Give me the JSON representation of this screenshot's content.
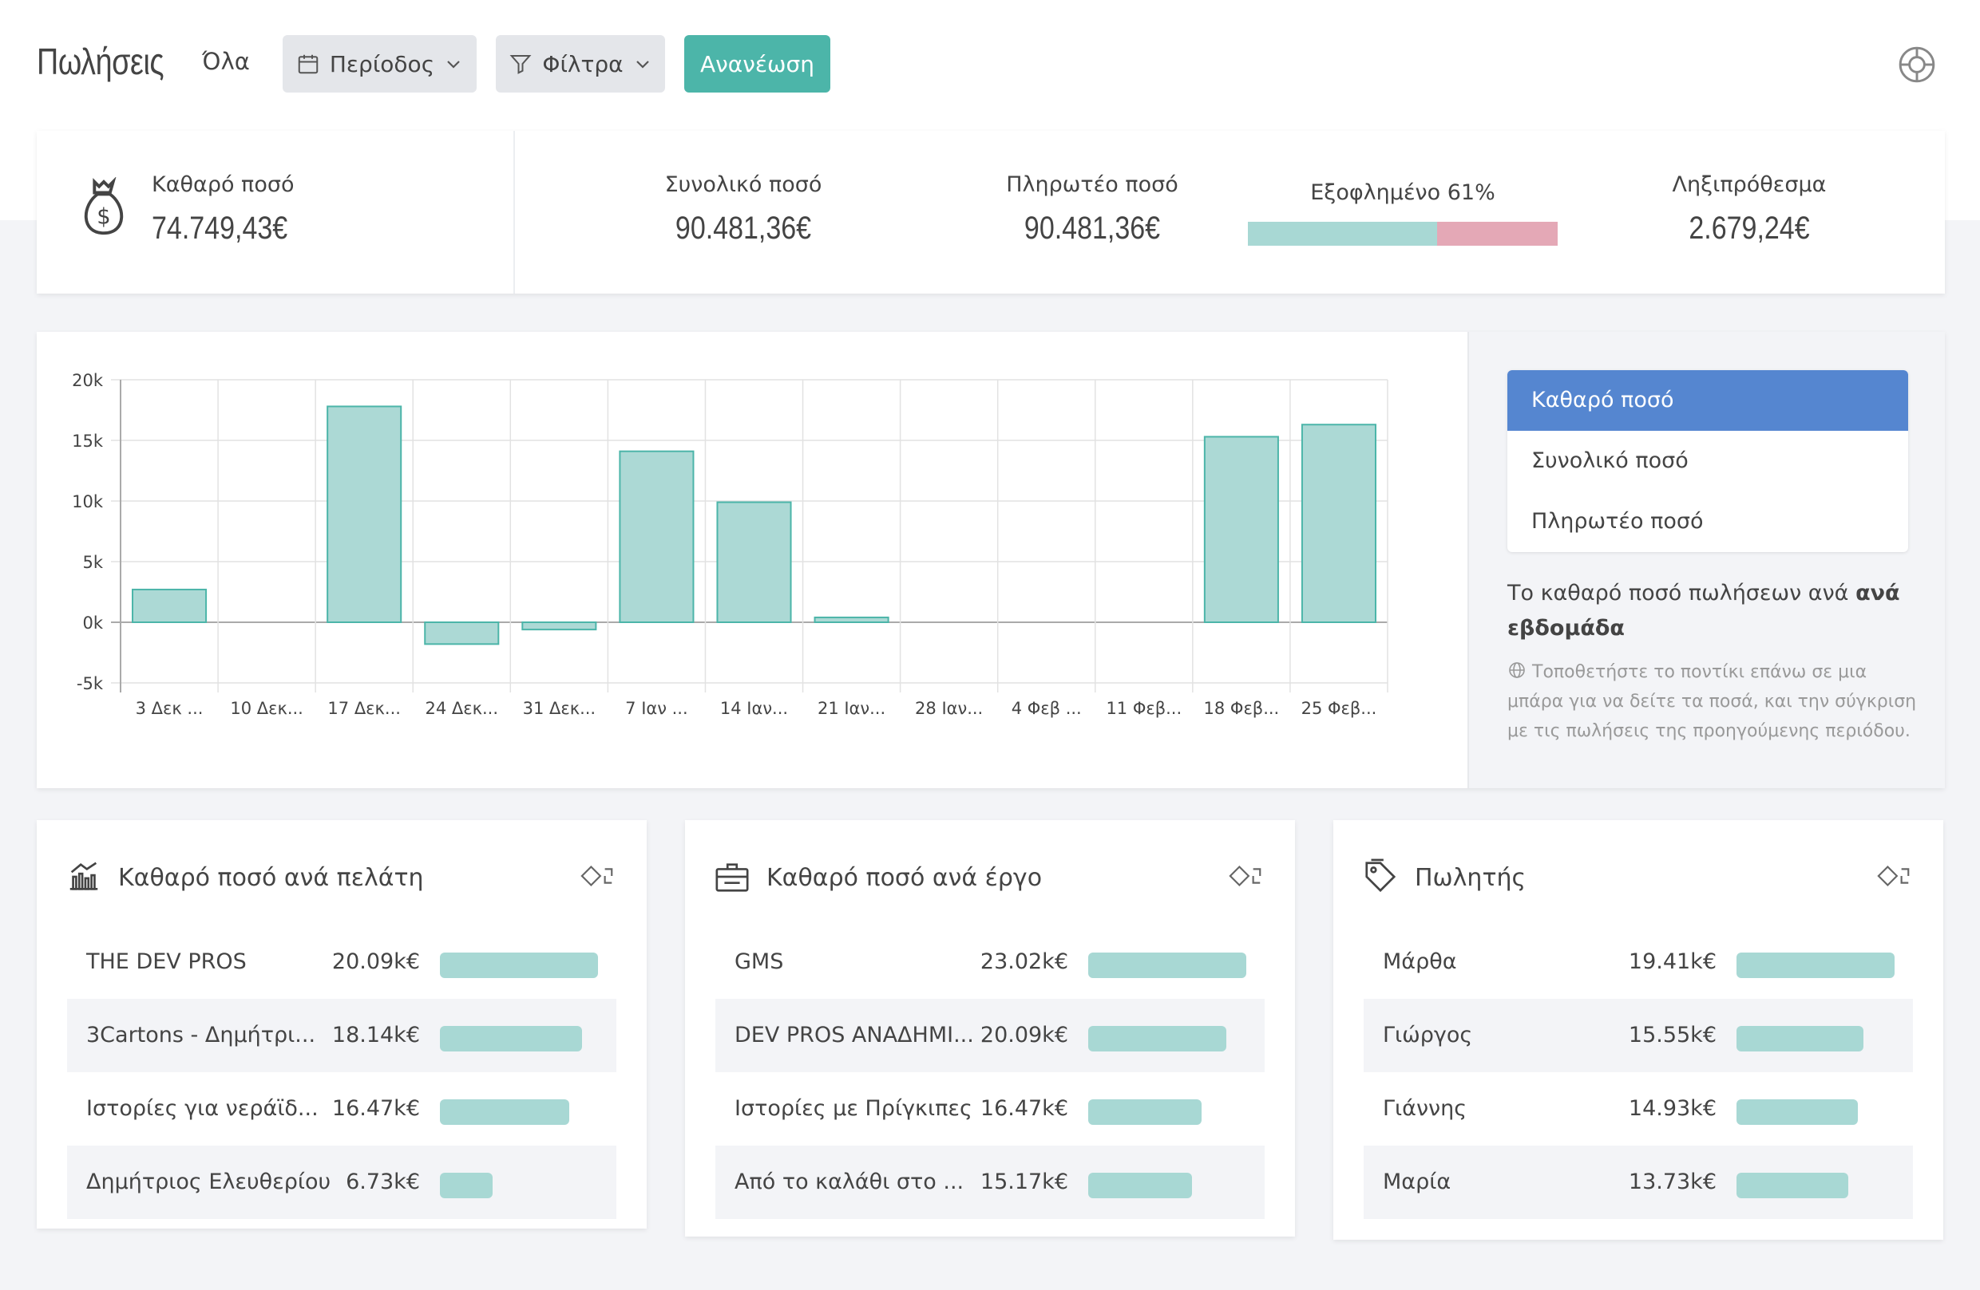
{
  "header": {
    "title": "Πωλήσεις",
    "scope": "Όλα",
    "period_label": "Περίοδος",
    "filters_label": "Φίλτρα",
    "refresh_label": "Ανανέωση"
  },
  "kpis": {
    "net_label": "Καθαρό ποσό",
    "net_value": "74.749,43€",
    "total_label": "Συνολικό ποσό",
    "total_value": "90.481,36€",
    "payable_label": "Πληρωτέο ποσό",
    "payable_value": "90.481,36€",
    "paid_label": "Εξοφλημένο 61%",
    "paid_fraction": 0.61,
    "overdue_label": "Ληξιπρόθεσμα",
    "overdue_value": "2.679,24€"
  },
  "chart_data": {
    "type": "bar",
    "categories": [
      "3 Δεκ ...",
      "10 Δεκ...",
      "17 Δεκ...",
      "24 Δεκ...",
      "31 Δεκ...",
      "7 Ιαν ...",
      "14 Ιαν...",
      "21 Ιαν...",
      "28 Ιαν...",
      "4 Φεβ ...",
      "11 Φεβ...",
      "18 Φεβ...",
      "25 Φεβ..."
    ],
    "values": [
      2700,
      0,
      17800,
      -1800,
      -600,
      14100,
      9900,
      400,
      0,
      0,
      0,
      15300,
      16300
    ],
    "ylim": [
      -5000,
      20000
    ],
    "yticks": [
      20000,
      15000,
      10000,
      5000,
      0,
      -5000
    ],
    "ytick_labels": [
      "20k",
      "15k",
      "10k",
      "5k",
      "0k",
      "-5k"
    ],
    "grid": true,
    "bar_color": "#acd9d5",
    "bar_stroke": "#4cb5a9"
  },
  "chart_side": {
    "metrics": [
      "Καθαρό ποσό",
      "Συνολικό ποσό",
      "Πληρωτέο ποσό"
    ],
    "desc_prefix": "Το καθαρό ποσό πωλήσεων ανά ",
    "desc_bold": "ανά εβδομάδα",
    "hint": "Τοποθετήστε το ποντίκι επάνω σε μια μπάρα για να δείτε τα ποσά, και την σύγκριση με τις πωλήσεις της προηγούμενης περιόδου."
  },
  "panels": [
    {
      "title": "Καθαρό ποσό ανά πελάτη",
      "icon": "bank-icon",
      "rows": [
        {
          "label": "THE DEV PROS",
          "value": "20.09k€",
          "fraction": 1.0
        },
        {
          "label": "3Cartons - Δημήτρι...",
          "value": "18.14k€",
          "fraction": 0.9
        },
        {
          "label": "Ιστορίες για νεράϊδ...",
          "value": "16.47k€",
          "fraction": 0.82
        },
        {
          "label": "Δημήτριος Ελευθερίου",
          "value": "6.73k€",
          "fraction": 0.335
        }
      ]
    },
    {
      "title": "Καθαρό ποσό ανά έργο",
      "icon": "briefcase-icon",
      "rows": [
        {
          "label": "GMS",
          "value": "23.02k€",
          "fraction": 1.0
        },
        {
          "label": "DEV PROS ΑΝΑΔΗΜΙ...",
          "value": "20.09k€",
          "fraction": 0.873
        },
        {
          "label": "Ιστορίες με Πρίγκιπες",
          "value": "16.47k€",
          "fraction": 0.715
        },
        {
          "label": "Από το καλάθι στο ...",
          "value": "15.17k€",
          "fraction": 0.659
        }
      ]
    },
    {
      "title": "Πωλητής",
      "icon": "tag-icon",
      "rows": [
        {
          "label": "Μάρθα",
          "value": "19.41k€",
          "fraction": 1.0
        },
        {
          "label": "Γιώργος",
          "value": "15.55k€",
          "fraction": 0.801
        },
        {
          "label": "Γιάννης",
          "value": "14.93k€",
          "fraction": 0.769
        },
        {
          "label": "Μαρία",
          "value": "13.73k€",
          "fraction": 0.707
        }
      ]
    }
  ]
}
